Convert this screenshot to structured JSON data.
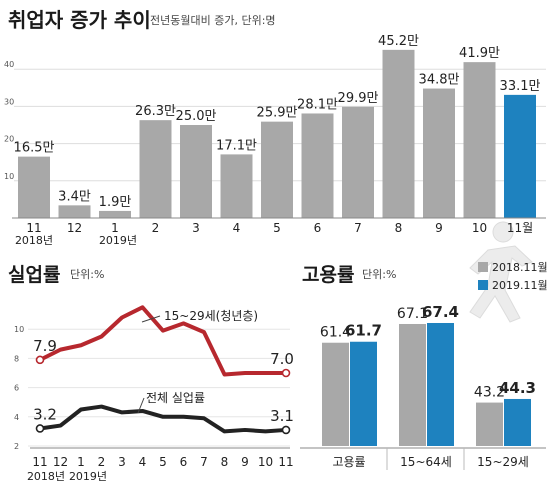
{
  "chart_data": [
    {
      "type": "bar",
      "title": "취업자 증가 추이",
      "subtitle": "전년동월대비 증가, 단위:명",
      "categories": [
        "11",
        "12",
        "1",
        "2",
        "3",
        "4",
        "5",
        "6",
        "7",
        "8",
        "9",
        "10",
        "11월"
      ],
      "year_labels": {
        "first": "2018년",
        "second": "2019년"
      },
      "values": [
        16.5,
        3.4,
        1.9,
        26.3,
        25.0,
        17.1,
        25.9,
        28.1,
        29.9,
        45.2,
        34.8,
        41.9,
        33.1
      ],
      "labels": [
        "16.5만",
        "3.4만",
        "1.9만",
        "26.3만",
        "25.0만",
        "17.1만",
        "25.9만",
        "28.1만",
        "29.9만",
        "45.2만",
        "34.8만",
        "41.9만",
        "33.1만"
      ],
      "ylim": [
        0,
        50
      ],
      "yticks": [
        10,
        20,
        30,
        40
      ],
      "highlight_index": 12,
      "colors": {
        "bar": "#a8a8a8",
        "highlight": "#1e82bf",
        "highlight_text": "#1e82bf"
      }
    },
    {
      "type": "line",
      "title": "실업률",
      "subtitle": "단위:%",
      "categories": [
        "11",
        "12",
        "1",
        "2",
        "3",
        "4",
        "5",
        "6",
        "7",
        "8",
        "9",
        "10",
        "11"
      ],
      "year_labels": {
        "first": "2018년",
        "second": "2019년"
      },
      "ylim": [
        2,
        12
      ],
      "yticks": [
        2,
        4,
        6,
        8,
        10
      ],
      "series": [
        {
          "name": "15~29세(청년층)",
          "values": [
            7.9,
            8.6,
            8.9,
            9.5,
            10.8,
            11.5,
            9.9,
            10.4,
            9.8,
            6.9,
            7.0,
            7.0,
            7.0
          ],
          "color": "#b7282e",
          "first_label": "7.9",
          "last_label": "7.0"
        },
        {
          "name": "전체 실업률",
          "values": [
            3.2,
            3.4,
            4.5,
            4.7,
            4.3,
            4.4,
            4.0,
            4.0,
            3.9,
            3.0,
            3.1,
            3.0,
            3.1
          ],
          "color": "#222222",
          "first_label": "3.2",
          "last_label": "3.1"
        }
      ]
    },
    {
      "type": "bar",
      "title": "고용률",
      "subtitle": "단위:%",
      "categories": [
        "고용률",
        "15~64세",
        "15~29세"
      ],
      "ylim": [
        30,
        75
      ],
      "series": [
        {
          "name": "2018.11월",
          "values": [
            61.4,
            67.1,
            43.2
          ],
          "labels": [
            "61.4",
            "67.1",
            "43.2"
          ],
          "color": "#a8a8a8"
        },
        {
          "name": "2019.11월",
          "values": [
            61.7,
            67.4,
            44.3
          ],
          "labels": [
            "61.7",
            "67.4",
            "44.3"
          ],
          "color": "#1e82bf"
        }
      ]
    }
  ]
}
